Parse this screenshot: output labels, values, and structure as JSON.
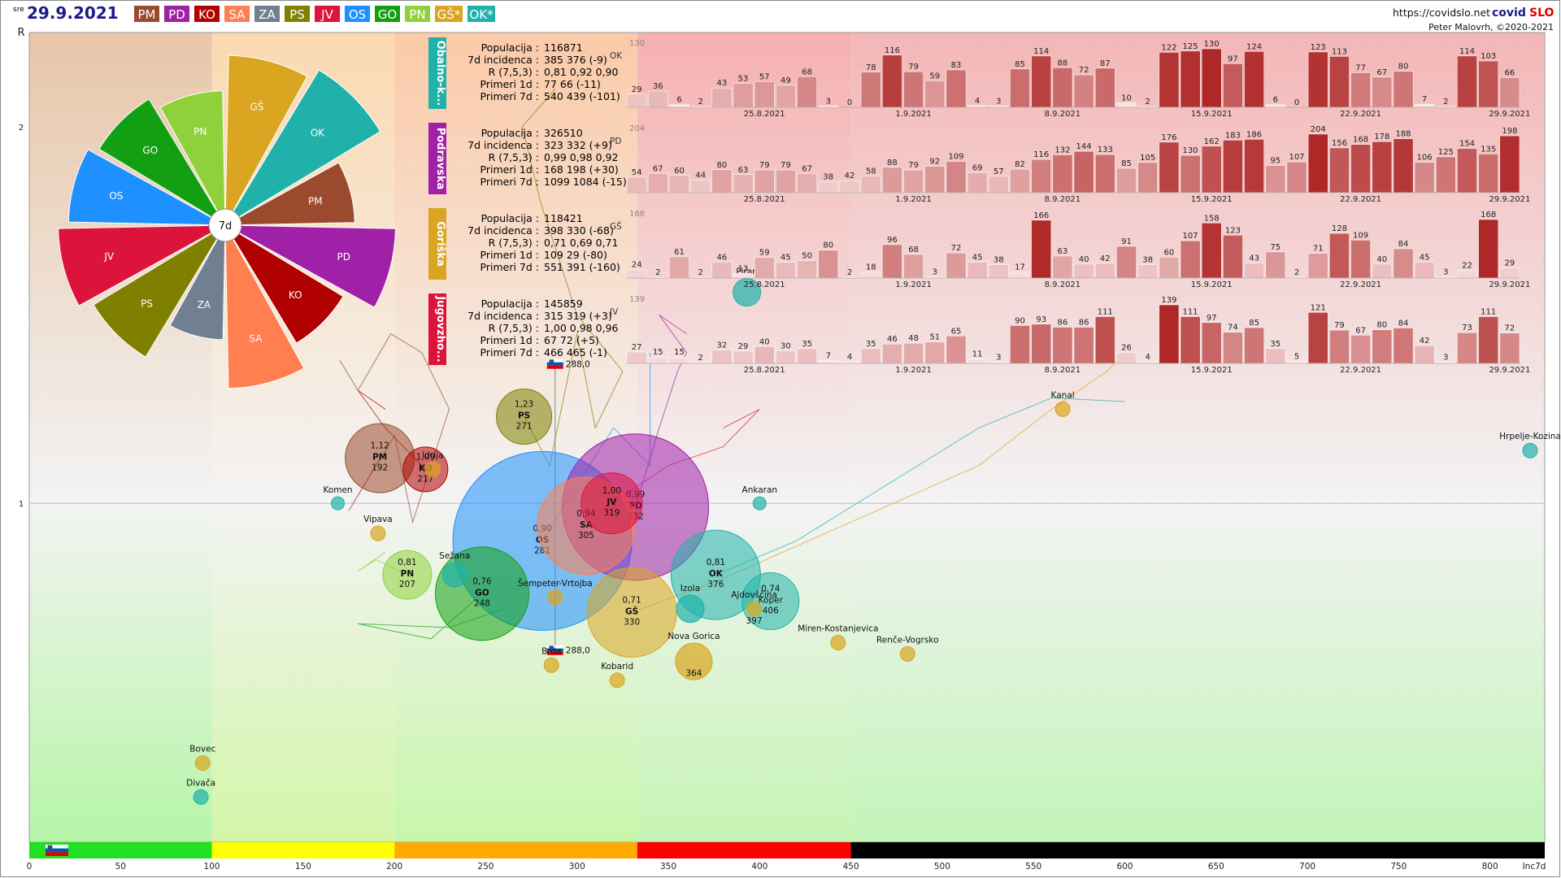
{
  "header": {
    "weekday": "sre",
    "date": "29.9.2021",
    "url": "https://covidslo.net",
    "brand_a": "covid",
    "brand_b": "SLO",
    "author": "Peter Malovrh, ©2020-2021"
  },
  "regions": [
    {
      "code": "PM",
      "color": "#9b4a2e"
    },
    {
      "code": "PD",
      "color": "#a020a8"
    },
    {
      "code": "KO",
      "color": "#b00000"
    },
    {
      "code": "SA",
      "color": "#ff7f50"
    },
    {
      "code": "ZA",
      "color": "#708090"
    },
    {
      "code": "PS",
      "color": "#808000"
    },
    {
      "code": "JV",
      "color": "#dc143c"
    },
    {
      "code": "OS",
      "color": "#1e90ff"
    },
    {
      "code": "GO",
      "color": "#12a012"
    },
    {
      "code": "PN",
      "color": "#8fd13a"
    },
    {
      "code": "GŠ*",
      "color": "#daa520"
    },
    {
      "code": "OK*",
      "color": "#20b2aa"
    }
  ],
  "axes": {
    "y_label": "R",
    "y_ticks": [
      "2",
      "1"
    ],
    "x_label": "Inc7d",
    "x_ticks": [
      "0",
      "50",
      "100",
      "150",
      "200",
      "250",
      "300",
      "350",
      "400",
      "450",
      "500",
      "550",
      "600",
      "650",
      "700",
      "750",
      "800"
    ]
  },
  "pie": {
    "center_label": "7d",
    "slices": [
      {
        "code": "OS",
        "value": 281,
        "color": "#1e90ff"
      },
      {
        "code": "GO",
        "value": 248,
        "color": "#12a012"
      },
      {
        "code": "PN",
        "value": 207,
        "color": "#8fd13a"
      },
      {
        "code": "GŠ",
        "value": 330,
        "color": "#daa520"
      },
      {
        "code": "OK",
        "value": 376,
        "color": "#20b2aa"
      },
      {
        "code": "PM",
        "value": 192,
        "color": "#9b4a2e"
      },
      {
        "code": "PD",
        "value": 332,
        "color": "#a020a8"
      },
      {
        "code": "KO",
        "value": 217,
        "color": "#b00000"
      },
      {
        "code": "SA",
        "value": 305,
        "color": "#ff7f50"
      },
      {
        "code": "ZA",
        "value": 150,
        "color": "#708090"
      },
      {
        "code": "PS",
        "value": 271,
        "color": "#808000"
      },
      {
        "code": "JV",
        "value": 319,
        "color": "#dc143c"
      }
    ]
  },
  "panels": [
    {
      "name": "Obalno-k...",
      "code": "OK",
      "color": "#20b2aa",
      "max": "130",
      "info": [
        [
          "Populacija",
          "116871"
        ],
        [
          "7d incidenca",
          "385 376 (-9)"
        ],
        [
          "R (7,5,3)",
          "0,81 0,92 0,90"
        ],
        [
          "Primeri 1d",
          "77 66 (-11)"
        ],
        [
          "Primeri 7d",
          "540 439 (-101)"
        ]
      ],
      "values": [
        29,
        36,
        6,
        2,
        43,
        53,
        57,
        49,
        68,
        3,
        0,
        78,
        116,
        79,
        59,
        83,
        4,
        3,
        85,
        114,
        88,
        72,
        87,
        10,
        2,
        122,
        125,
        130,
        97,
        124,
        6,
        0,
        123,
        113,
        77,
        67,
        80,
        7,
        2,
        114,
        103,
        66
      ],
      "dates": [
        "25.8.2021",
        "1.9.2021",
        "8.9.2021",
        "15.9.2021",
        "22.9.2021",
        "29.9.2021"
      ]
    },
    {
      "name": "Podravska",
      "code": "PD",
      "color": "#a020a8",
      "max": "204",
      "info": [
        [
          "Populacija",
          "326510"
        ],
        [
          "7d incidenca",
          "323 332 (+9)"
        ],
        [
          "R (7,5,3)",
          "0,99 0,98 0,92"
        ],
        [
          "Primeri 1d",
          "168 198 (+30)"
        ],
        [
          "Primeri 7d",
          "1099 1084 (-15)"
        ]
      ],
      "values": [
        54,
        67,
        60,
        44,
        80,
        63,
        79,
        79,
        67,
        38,
        42,
        58,
        88,
        79,
        92,
        109,
        69,
        57,
        82,
        116,
        132,
        144,
        133,
        85,
        105,
        176,
        130,
        162,
        183,
        186,
        95,
        107,
        204,
        156,
        168,
        178,
        188,
        106,
        125,
        154,
        135,
        198
      ],
      "dates": [
        "25.8.2021",
        "1.9.2021",
        "8.9.2021",
        "15.9.2021",
        "22.9.2021",
        "29.9.2021"
      ]
    },
    {
      "name": "Goriška",
      "code": "GŠ",
      "color": "#daa520",
      "max": "168",
      "info": [
        [
          "Populacija",
          "118421"
        ],
        [
          "7d incidenca",
          "398 330 (-68)"
        ],
        [
          "R (7,5,3)",
          "0,71 0,69 0,71"
        ],
        [
          "Primeri 1d",
          "109 29 (-80)"
        ],
        [
          "Primeri 7d",
          "551 391 (-160)"
        ]
      ],
      "values": [
        24,
        2,
        61,
        2,
        46,
        13,
        59,
        45,
        50,
        80,
        2,
        18,
        96,
        68,
        3,
        72,
        45,
        38,
        17,
        166,
        63,
        40,
        42,
        91,
        38,
        60,
        107,
        158,
        123,
        43,
        75,
        2,
        71,
        128,
        109,
        40,
        84,
        45,
        3,
        22,
        168,
        29
      ],
      "dates": [
        "25.8.2021",
        "1.9.2021",
        "8.9.2021",
        "15.9.2021",
        "22.9.2021",
        "29.9.2021"
      ]
    },
    {
      "name": "Jugovzho...",
      "code": "JV",
      "color": "#dc143c",
      "max": "139",
      "info": [
        [
          "Populacija",
          "145859"
        ],
        [
          "7d incidenca",
          "315 319 (+3)"
        ],
        [
          "R (7,5,3)",
          "1,00 0,98 0,96"
        ],
        [
          "Primeri 1d",
          "67 72 (+5)"
        ],
        [
          "Primeri 7d",
          "466 465 (-1)"
        ]
      ],
      "values": [
        27,
        15,
        15,
        2,
        32,
        29,
        40,
        30,
        35,
        7,
        4,
        35,
        46,
        48,
        51,
        65,
        11,
        3,
        90,
        93,
        86,
        86,
        111,
        26,
        4,
        139,
        111,
        97,
        74,
        85,
        35,
        5,
        121,
        79,
        67,
        80,
        84,
        42,
        3,
        73,
        111,
        72
      ],
      "dates": [
        "25.8.2021",
        "1.9.2021",
        "8.9.2021",
        "15.9.2021",
        "22.9.2021",
        "29.9.2021"
      ]
    }
  ],
  "chart_data": {
    "type": "scatter",
    "xlabel": "Inc7d",
    "ylabel": "R",
    "xlim": [
      0,
      830
    ],
    "ylim": [
      0.1,
      2.25
    ],
    "national": {
      "label": "288,0",
      "x": 288,
      "y": 1.37
    },
    "national_bottom": {
      "label": "288,0",
      "x": 288,
      "y": 0.61
    },
    "regions": [
      {
        "code": "PM",
        "r_label": "1,12",
        "x": 192,
        "y": 1.12,
        "size": 85,
        "color": "#9b4a2e"
      },
      {
        "code": "KO",
        "r_label": "1,09",
        "x": 217,
        "y": 1.09,
        "size": 55,
        "color": "#b00000"
      },
      {
        "code": "PS",
        "r_label": "1,23",
        "x": 271,
        "y": 1.23,
        "size": 68,
        "color": "#808000"
      },
      {
        "code": "OS",
        "r_label": "0,90",
        "x": 281,
        "y": 0.9,
        "size": 220,
        "color": "#1e90ff"
      },
      {
        "code": "SA",
        "r_label": "0,94",
        "x": 305,
        "y": 0.94,
        "size": 120,
        "color": "#ff7f50"
      },
      {
        "code": "JV",
        "r_label": "1,00",
        "x": 319,
        "y": 1.0,
        "size": 75,
        "color": "#dc143c"
      },
      {
        "code": "PD",
        "r_label": "0,99",
        "x": 332,
        "y": 0.99,
        "size": 180,
        "color": "#a020a8"
      },
      {
        "code": "PN",
        "r_label": "0,81",
        "x": 207,
        "y": 0.81,
        "size": 60,
        "color": "#8fd13a"
      },
      {
        "code": "GO",
        "r_label": "0,76",
        "x": 248,
        "y": 0.76,
        "size": 115,
        "color": "#12a012"
      },
      {
        "code": "GŠ",
        "r_label": "0,71",
        "x": 330,
        "y": 0.71,
        "size": 110,
        "color": "#daa520"
      },
      {
        "code": "OK",
        "r_label": "0,81",
        "x": 376,
        "y": 0.81,
        "size": 110,
        "color": "#20b2aa"
      },
      {
        "code": "",
        "r_label": "0,74",
        "x": 406,
        "y": 0.74,
        "size": 70,
        "color": "#20b2aa",
        "sub": "406",
        "label_name": "Koper"
      }
    ],
    "municipalities": [
      {
        "name": "Piran",
        "x": 393,
        "y": 1.56,
        "size": 34,
        "color": "#20b2aa"
      },
      {
        "name": "Kanal",
        "x": 566,
        "y": 1.25,
        "size": 18,
        "color": "#daa520"
      },
      {
        "name": "Hrpelje-Kozina",
        "x": 822,
        "y": 1.14,
        "size": 18,
        "color": "#20b2aa"
      },
      {
        "name": "Ankaran",
        "x": 400,
        "y": 1.0,
        "size": 16,
        "color": "#20b2aa"
      },
      {
        "name": "Komen",
        "x": 169,
        "y": 1.0,
        "size": 16,
        "color": "#20b2aa"
      },
      {
        "name": "Vipava",
        "x": 191,
        "y": 0.92,
        "size": 18,
        "color": "#daa520"
      },
      {
        "name": "Idrija",
        "x": 221,
        "y": 1.09,
        "size": 18,
        "color": "#daa520"
      },
      {
        "name": "Sežana",
        "x": 233,
        "y": 0.81,
        "size": 30,
        "color": "#20b2aa"
      },
      {
        "name": "Šempeter-Vrtojba",
        "x": 288,
        "y": 0.75,
        "size": 18,
        "color": "#daa520"
      },
      {
        "name": "Izola",
        "x": 362,
        "y": 0.72,
        "size": 34,
        "color": "#20b2aa"
      },
      {
        "name": "Ajdovščina",
        "x": 397,
        "y": 0.72,
        "size": 18,
        "color": "#daa520"
      },
      {
        "name": "Nova Gorica",
        "x": 364,
        "y": 0.58,
        "size": 45,
        "color": "#daa520"
      },
      {
        "name": "Miren-Kostanjevica",
        "x": 443,
        "y": 0.63,
        "size": 18,
        "color": "#daa520"
      },
      {
        "name": "Renče-Vogrsko",
        "x": 481,
        "y": 0.6,
        "size": 18,
        "color": "#daa520"
      },
      {
        "name": "Brda",
        "x": 286,
        "y": 0.57,
        "size": 18,
        "color": "#daa520"
      },
      {
        "name": "Kobarid",
        "x": 322,
        "y": 0.53,
        "size": 18,
        "color": "#daa520"
      },
      {
        "name": "Bovec",
        "x": 95,
        "y": 0.31,
        "size": 18,
        "color": "#daa520"
      },
      {
        "name": "Divača",
        "x": 94,
        "y": 0.22,
        "size": 18,
        "color": "#20b2aa"
      }
    ],
    "bands": [
      {
        "from": 0,
        "to": 100,
        "color": "#21e021"
      },
      {
        "from": 100,
        "to": 200,
        "color": "#ffff00"
      },
      {
        "from": 200,
        "to": 333,
        "color": "#ffaa00"
      },
      {
        "from": 333,
        "to": 450,
        "color": "#ff0000"
      },
      {
        "from": 450,
        "to": 830,
        "color": "#000000"
      }
    ],
    "grid": "R=1 line",
    "extra_labels": [
      "ZA"
    ],
    "extra_values": [
      {
        "code": "Nova Gorica sub",
        "value": "364"
      },
      {
        "code": "Ajdovščina sub",
        "value": "397"
      }
    ]
  }
}
